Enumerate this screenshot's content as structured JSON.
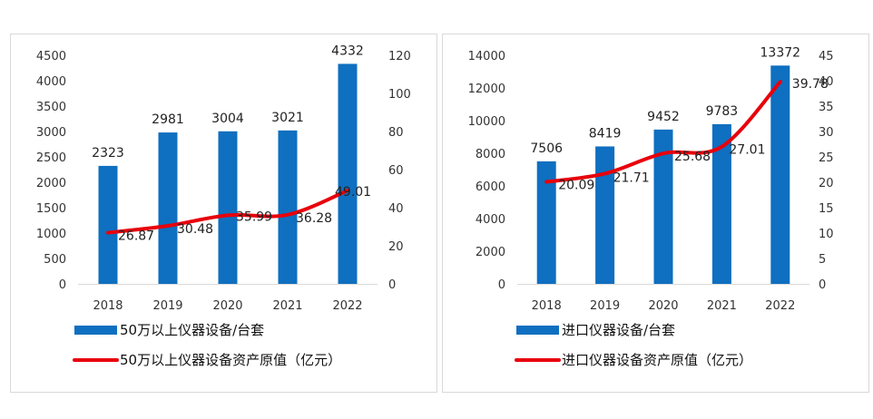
{
  "colors": {
    "bar": "#0f6fc0",
    "line": "#e8000b",
    "border": "#d9d9d9",
    "text": "#222222"
  },
  "chart_data": [
    {
      "type": "bar+line",
      "categories": [
        "2018",
        "2019",
        "2020",
        "2021",
        "2022"
      ],
      "series": [
        {
          "name": "50万以上仪器设备/台套",
          "kind": "bar",
          "axis": "left",
          "values": [
            2323,
            2981,
            3004,
            3021,
            4332
          ],
          "labels": [
            "2323",
            "2981",
            "3004",
            "3021",
            "4332"
          ]
        },
        {
          "name": "50万以上仪器设备资产原值（亿元）",
          "kind": "line",
          "axis": "right",
          "values": [
            26.87,
            30.48,
            35.99,
            36.28,
            49.01
          ],
          "labels": [
            "26.87",
            "30.48",
            "35.99",
            "36.28",
            "49.01"
          ]
        }
      ],
      "y_left": {
        "min": 0,
        "max": 4500,
        "step": 500,
        "ticks": [
          "0",
          "500",
          "1000",
          "1500",
          "2000",
          "2500",
          "3000",
          "3500",
          "4000",
          "4500"
        ]
      },
      "y_right": {
        "min": 0,
        "max": 120,
        "step": 20,
        "ticks": [
          "0",
          "20",
          "40",
          "60",
          "80",
          "100",
          "120"
        ]
      },
      "legend_position": "bottom-left",
      "grid": false
    },
    {
      "type": "bar+line",
      "categories": [
        "2018",
        "2019",
        "2020",
        "2021",
        "2022"
      ],
      "series": [
        {
          "name": "进口仪器设备/台套",
          "kind": "bar",
          "axis": "left",
          "values": [
            7506,
            8419,
            9452,
            9783,
            13372
          ],
          "labels": [
            "7506",
            "8419",
            "9452",
            "9783",
            "13372"
          ]
        },
        {
          "name": "进口仪器设备资产原值（亿元）",
          "kind": "line",
          "axis": "right",
          "values": [
            20.09,
            21.71,
            25.68,
            27.01,
            39.78
          ],
          "labels": [
            "20.09",
            "21.71",
            "25.68",
            "27.01",
            "39.78"
          ]
        }
      ],
      "y_left": {
        "min": 0,
        "max": 14000,
        "step": 2000,
        "ticks": [
          "0",
          "2000",
          "4000",
          "6000",
          "8000",
          "10000",
          "12000",
          "14000"
        ]
      },
      "y_right": {
        "min": 0,
        "max": 45,
        "step": 5,
        "ticks": [
          "0",
          "5",
          "10",
          "15",
          "20",
          "25",
          "30",
          "35",
          "40",
          "45"
        ]
      },
      "legend_position": "bottom-left",
      "grid": false
    }
  ]
}
